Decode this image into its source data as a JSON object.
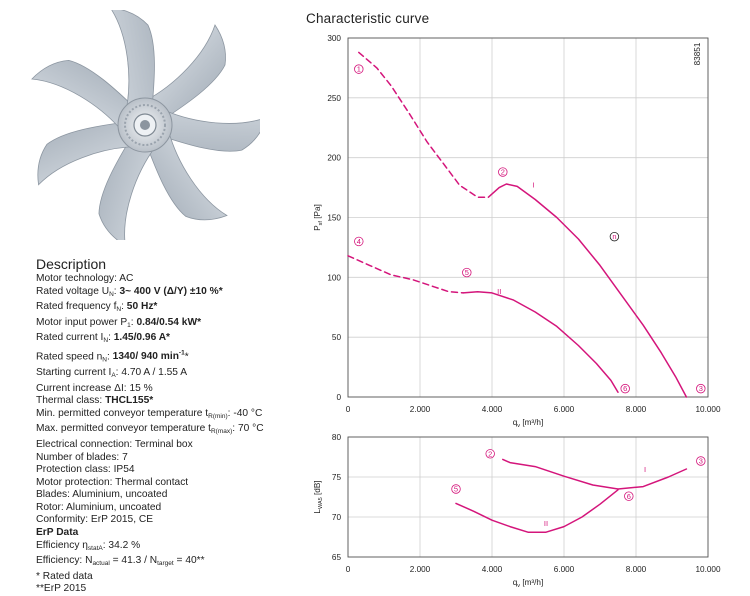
{
  "description": {
    "heading": "Description",
    "lines": [
      {
        "label": "Motor technology: ",
        "value": "AC"
      },
      {
        "label": "Rated voltage U",
        "sub": "N",
        "mid": ": ",
        "value": "3~ 400 V (Δ/Y) ±10 %*",
        "bold": true
      },
      {
        "label": "Rated frequency f",
        "sub": "N",
        "mid": ": ",
        "value": "50 Hz*",
        "bold": true
      },
      {
        "label": "Motor input power P",
        "sub": "1",
        "mid": ": ",
        "value": "0.84/0.54 kW*",
        "bold": true
      },
      {
        "label": "Rated current I",
        "sub": "N",
        "mid": ": ",
        "value": "1.45/0.96 A*",
        "bold": true
      },
      {
        "label": "Rated speed n",
        "sub": "N",
        "mid": ": ",
        "value": "1340/ 940 min",
        "sup": "-1",
        "tail": "*",
        "bold": true
      },
      {
        "label": "Starting current I",
        "sub": "A",
        "mid": ": ",
        "value": "4.70 A / 1.55 A"
      },
      {
        "label": "Current increase ΔI: ",
        "value": "15 %"
      },
      {
        "label": "Thermal class: ",
        "value": "THCL155*",
        "bold": true
      },
      {
        "label": "Min. permitted conveyor temperature t",
        "sub": "R(min)",
        "mid": ": ",
        "value": "-40 °C"
      },
      {
        "label": "Max. permitted conveyor temperature t",
        "sub": "R(max)",
        "mid": ": ",
        "value": "70 °C"
      },
      {
        "label": "Electrical connection: ",
        "value": "Terminal box"
      },
      {
        "label": "Number of blades: ",
        "value": "7"
      },
      {
        "label": "Protection class: ",
        "value": "IP54"
      },
      {
        "label": "Motor protection: ",
        "value": "Thermal contact"
      },
      {
        "label": "Blades: ",
        "value": "Aluminium, uncoated"
      },
      {
        "label": "Rotor: ",
        "value": "Aluminium, uncoated"
      },
      {
        "label": "Conformity: ",
        "value": "ErP 2015, CE"
      }
    ],
    "erp_heading": "ErP Data",
    "erp_lines": [
      {
        "label": "Efficiency η",
        "sub": "statA",
        "mid": ": ",
        "value": "34.2 %"
      },
      {
        "label": "Efficiency: N",
        "sub": "actual",
        "mid": " = 41.3 / N",
        "sub2": "target",
        "value": " = 40**"
      }
    ],
    "footnotes": [
      "* Rated data",
      "**ErP 2015"
    ]
  },
  "chart_title": "Characteristic curve",
  "chart_data": [
    {
      "type": "line",
      "ylabel": "P",
      "ylabel_sub": "sf",
      "ylabel_unit": " [Pa]",
      "xlabel": "q",
      "xlabel_sub": "v",
      "xlabel_unit": " [m³/h]",
      "xlim": [
        0,
        10000
      ],
      "ylim": [
        0,
        300
      ],
      "x_ticks": [
        0,
        2000,
        4000,
        6000,
        8000,
        10000
      ],
      "x_tick_labels": [
        "0",
        "2.000",
        "4.000",
        "6.000",
        "8.000",
        "10.000"
      ],
      "y_ticks": [
        0,
        50,
        100,
        150,
        200,
        250,
        300
      ],
      "y_tick_labels": [
        "0",
        "50",
        "100",
        "150",
        "200",
        "250",
        "300"
      ],
      "corner_label": "83851",
      "grid": true,
      "color": "#d4157b",
      "series": [
        {
          "name": "I",
          "style": "dashed",
          "x": [
            300,
            800,
            1200,
            1700,
            2200,
            2700,
            3100,
            3600,
            3900
          ],
          "y": [
            288,
            275,
            260,
            237,
            213,
            193,
            177,
            167,
            167
          ]
        },
        {
          "name": "I",
          "style": "solid",
          "x": [
            3900,
            4200,
            4400,
            4700,
            5200,
            5800,
            6400,
            7000,
            7600,
            8200,
            8700,
            9100,
            9400
          ],
          "y": [
            167,
            175,
            178,
            176,
            165,
            150,
            132,
            110,
            85,
            60,
            37,
            17,
            0
          ]
        },
        {
          "name": "II",
          "style": "dashed",
          "x": [
            0,
            600,
            1200,
            1800,
            2400,
            2800,
            3200
          ],
          "y": [
            118,
            110,
            102,
            98,
            92,
            88,
            87
          ]
        },
        {
          "name": "II",
          "style": "solid",
          "x": [
            3200,
            3600,
            4000,
            4600,
            5200,
            5800,
            6400,
            6900,
            7300,
            7500
          ],
          "y": [
            87,
            88,
            87,
            81,
            71,
            59,
            43,
            28,
            14,
            4
          ]
        }
      ],
      "point_labels": [
        {
          "text": "1",
          "x": 300,
          "y": 274
        },
        {
          "text": "2",
          "x": 4300,
          "y": 188
        },
        {
          "text": "3",
          "x": 9800,
          "y": 7
        },
        {
          "text": "4",
          "x": 300,
          "y": 130
        },
        {
          "text": "5",
          "x": 3300,
          "y": 104
        },
        {
          "text": "6",
          "x": 7700,
          "y": 7
        },
        {
          "text": "n",
          "x": 7400,
          "y": 134,
          "style": "black"
        }
      ],
      "curve_labels": [
        {
          "text": "I",
          "x": 5150,
          "y": 175
        },
        {
          "text": "II",
          "x": 4200,
          "y": 86
        }
      ]
    },
    {
      "type": "line",
      "ylabel": "L",
      "ylabel_sub": "WA5",
      "ylabel_unit": " [dB]",
      "xlabel": "q",
      "xlabel_sub": "v",
      "xlabel_unit": " [m³/h]",
      "xlim": [
        0,
        10000
      ],
      "ylim": [
        65,
        80
      ],
      "x_ticks": [
        0,
        2000,
        4000,
        6000,
        8000,
        10000
      ],
      "x_tick_labels": [
        "0",
        "2.000",
        "4.000",
        "6.000",
        "8.000",
        "10.000"
      ],
      "y_ticks": [
        65,
        70,
        75,
        80
      ],
      "y_tick_labels": [
        "65",
        "70",
        "75",
        "80"
      ],
      "grid": true,
      "color": "#d4157b",
      "series": [
        {
          "name": "I",
          "style": "solid",
          "x": [
            4300,
            4500,
            5200,
            6000,
            6800,
            7500,
            8200,
            8900,
            9400
          ],
          "y": [
            77.2,
            76.8,
            76.3,
            75.1,
            74.0,
            73.5,
            73.8,
            75.0,
            76.0
          ]
        },
        {
          "name": "II",
          "style": "solid",
          "x": [
            3000,
            3500,
            4000,
            4500,
            5000,
            5500,
            6000,
            6500,
            7000,
            7500
          ],
          "y": [
            71.7,
            70.7,
            69.6,
            68.8,
            68.1,
            68.1,
            68.8,
            70.0,
            71.6,
            73.4
          ]
        }
      ],
      "point_labels": [
        {
          "text": "2",
          "x": 3950,
          "y": 77.9
        },
        {
          "text": "5",
          "x": 3000,
          "y": 73.5
        },
        {
          "text": "3",
          "x": 9800,
          "y": 77.0
        },
        {
          "text": "6",
          "x": 7800,
          "y": 72.6
        }
      ],
      "curve_labels": [
        {
          "text": "I",
          "x": 8250,
          "y": 75.6
        },
        {
          "text": "II",
          "x": 5500,
          "y": 68.9
        }
      ]
    }
  ]
}
